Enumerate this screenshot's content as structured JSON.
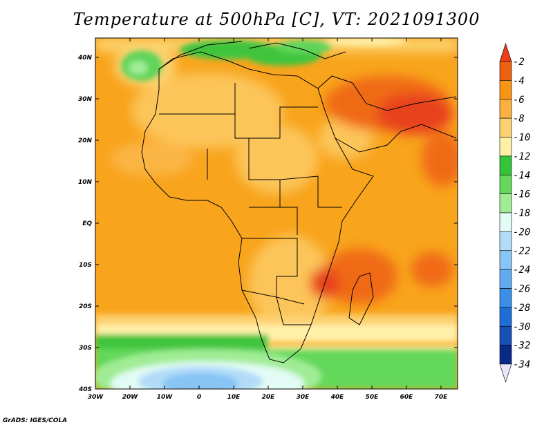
{
  "title": "Temperature at 500hPa [C], VT: 2021091300",
  "credit": "GrADS: IGES/COLA",
  "lon_ticks": [
    "30W",
    "20W",
    "10W",
    "0",
    "10E",
    "20E",
    "30E",
    "40E",
    "50E",
    "60E",
    "70E"
  ],
  "lat_ticks": [
    "40N",
    "30N",
    "20N",
    "10N",
    "EQ",
    "10S",
    "20S",
    "30S",
    "40S"
  ],
  "colorbar": {
    "labels": [
      "-2",
      "-4",
      "-6",
      "-8",
      "-10",
      "-12",
      "-14",
      "-16",
      "-18",
      "-20",
      "-22",
      "-24",
      "-26",
      "-28",
      "-30",
      "-32",
      "-34"
    ],
    "colors": {
      "above": "#e8401a",
      "bins": [
        "#ee6010",
        "#f79414",
        "#fbb040",
        "#fdd070",
        "#fff0a8",
        "#33c43a",
        "#64d85a",
        "#a0ec94",
        "#e2fbf4",
        "#b2dcf8",
        "#88c4f4",
        "#62aaf0",
        "#3a8ee8",
        "#1e6ed8",
        "#1450b8",
        "#0a2a88"
      ],
      "below": "#e8e8fc"
    }
  }
}
